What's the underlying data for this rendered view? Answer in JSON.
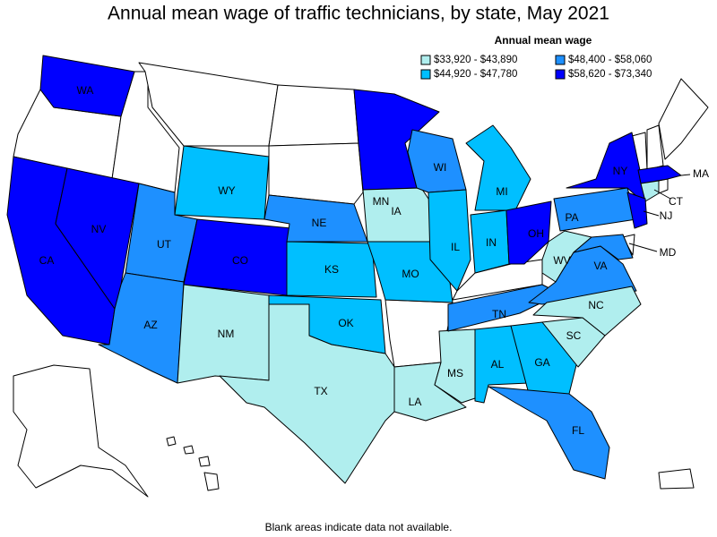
{
  "title": "Annual mean wage of traffic technicians, by state, May 2021",
  "legend": {
    "title": "Annual mean wage",
    "items": [
      {
        "label": "$33,920 - $43,890",
        "color": "#b0eeee"
      },
      {
        "label": "$44,920 - $47,780",
        "color": "#00bfff"
      },
      {
        "label": "$48,400 - $58,060",
        "color": "#1e90ff"
      },
      {
        "label": "$58,620 - $73,340",
        "color": "#0000ff"
      }
    ]
  },
  "states": [
    {
      "label": "WA",
      "range": "$58,620 - $73,340"
    },
    {
      "label": "CA",
      "range": "$58,620 - $73,340"
    },
    {
      "label": "NV",
      "range": "$58,620 - $73,340"
    },
    {
      "label": "UT",
      "range": "$48,400 - $58,060"
    },
    {
      "label": "AZ",
      "range": "$48,400 - $58,060"
    },
    {
      "label": "WY",
      "range": "$44,920 - $47,780"
    },
    {
      "label": "CO",
      "range": "$58,620 - $73,340"
    },
    {
      "label": "NM",
      "range": "$33,920 - $43,890"
    },
    {
      "label": "NE",
      "range": "$48,400 - $58,060"
    },
    {
      "label": "KS",
      "range": "$44,920 - $47,780"
    },
    {
      "label": "OK",
      "range": "$44,920 - $47,780"
    },
    {
      "label": "TX",
      "range": "$33,920 - $43,890"
    },
    {
      "label": "MN",
      "range": "$58,620 - $73,340"
    },
    {
      "label": "IA",
      "range": "$33,920 - $43,890"
    },
    {
      "label": "MO",
      "range": "$44,920 - $47,780"
    },
    {
      "label": "LA",
      "range": "$33,920 - $43,890"
    },
    {
      "label": "WI",
      "range": "$48,400 - $58,060"
    },
    {
      "label": "IL",
      "range": "$44,920 - $47,780"
    },
    {
      "label": "MS",
      "range": "$33,920 - $43,890"
    },
    {
      "label": "MI",
      "range": "$44,920 - $47,780"
    },
    {
      "label": "IN",
      "range": "$44,920 - $47,780"
    },
    {
      "label": "TN",
      "range": "$48,400 - $58,060"
    },
    {
      "label": "AL",
      "range": "$44,920 - $47,780"
    },
    {
      "label": "OH",
      "range": "$58,620 - $73,340"
    },
    {
      "label": "GA",
      "range": "$44,920 - $47,780"
    },
    {
      "label": "FL",
      "range": "$48,400 - $58,060"
    },
    {
      "label": "PA",
      "range": "$48,400 - $58,060"
    },
    {
      "label": "WV",
      "range": "$33,920 - $43,890"
    },
    {
      "label": "VA",
      "range": "$48,400 - $58,060"
    },
    {
      "label": "NC",
      "range": "$33,920 - $43,890"
    },
    {
      "label": "SC",
      "range": "$33,920 - $43,890"
    },
    {
      "label": "NY",
      "range": "$58,620 - $73,340"
    },
    {
      "label": "MA",
      "range": "$58,620 - $73,340"
    },
    {
      "label": "CT",
      "range": "$33,920 - $43,890"
    },
    {
      "label": "NJ",
      "range": "$58,620 - $73,340"
    },
    {
      "label": "MD",
      "range": "$48,400 - $58,060"
    }
  ],
  "footnote": "Blank areas indicate data not available."
}
